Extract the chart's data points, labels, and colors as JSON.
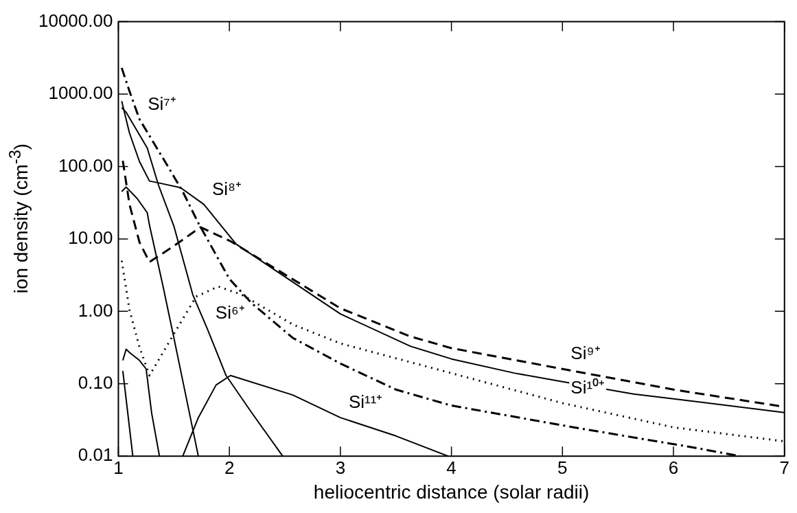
{
  "chart_data": {
    "type": "line",
    "xlabel": "heliocentric distance (solar radii)",
    "ylabel": "ion density (cm$^{-3}$)",
    "log": "y",
    "xlim": [
      1,
      7
    ],
    "xticks": [
      1,
      2,
      3,
      4,
      5,
      6,
      7
    ],
    "ylim": [
      0.01,
      10000
    ],
    "yticks": [
      {
        "value": 0.01,
        "label": "0.01"
      },
      {
        "value": 0.1,
        "label": "0.10"
      },
      {
        "value": 1,
        "label": "1.00"
      },
      {
        "value": 10,
        "label": "10.00"
      },
      {
        "value": 100,
        "label": "100.00"
      },
      {
        "value": 1000,
        "label": "1000.00"
      },
      {
        "value": 10000,
        "label": "10000.00"
      }
    ],
    "grid": false,
    "legend": false,
    "marker": "none",
    "series": [
      {
        "color": "#000000",
        "line_style": "dashdot",
        "x": [
          1.03,
          1.1,
          1.19,
          1.42,
          1.58,
          1.72,
          1.8,
          2.0,
          2.2,
          2.57,
          3.0,
          3.5,
          4.0,
          5.1,
          6.2,
          6.6
        ],
        "values": [
          2300,
          1100,
          450,
          117,
          45,
          16.6,
          10,
          2.8,
          1.3,
          0.43,
          0.19,
          0.083,
          0.05,
          0.025,
          0.013,
          0.01
        ]
      },
      {
        "color": "#000000",
        "line_style": "solid",
        "x": [
          1.03,
          1.1,
          1.19,
          1.28,
          1.35,
          1.56,
          1.77,
          2.06,
          3.0,
          3.63,
          4.0,
          4.57,
          5.0,
          5.64,
          6.0,
          7.0
        ],
        "values": [
          800,
          290,
          117,
          63,
          60,
          51,
          30,
          8.5,
          0.92,
          0.33,
          0.22,
          0.14,
          0.107,
          0.072,
          0.062,
          0.04
        ]
      },
      {
        "color": "#000000",
        "line_style": "dashed",
        "x": [
          1.04,
          1.1,
          1.19,
          1.28,
          1.5,
          1.74,
          2.01,
          3.0,
          3.63,
          4.0,
          5.0,
          6.0,
          7.0
        ],
        "values": [
          120,
          30,
          9,
          4.8,
          8,
          14.5,
          9.3,
          1.1,
          0.45,
          0.31,
          0.16,
          0.083,
          0.048
        ]
      },
      {
        "color": "#000000",
        "line_style": "dotted",
        "x": [
          1.03,
          1.1,
          1.19,
          1.28,
          1.49,
          1.7,
          1.9,
          2.11,
          2.57,
          3.0,
          4.0,
          5.0,
          6.0,
          7.0
        ],
        "values": [
          5,
          1.05,
          0.32,
          0.13,
          0.46,
          1.6,
          2.2,
          1.7,
          0.66,
          0.36,
          0.14,
          0.054,
          0.025,
          0.016
        ]
      },
      {
        "color": "#000000",
        "line_style": "solid",
        "x": [
          1.03,
          1.07,
          1.26,
          1.36,
          1.5,
          1.67,
          1.8,
          1.97,
          2.2,
          2.48
        ],
        "values": [
          650,
          560,
          180,
          56,
          15,
          1.7,
          0.58,
          0.13,
          0.04,
          0.01
        ]
      },
      {
        "color": "#000000",
        "line_style": "solid",
        "x": [
          1.03,
          1.07,
          1.17,
          1.26,
          1.28,
          1.4,
          1.5,
          1.6,
          1.72
        ],
        "values": [
          45,
          52,
          36,
          23,
          15.5,
          2.3,
          0.43,
          0.078,
          0.01
        ]
      },
      {
        "color": "#000000",
        "line_style": "solid",
        "x": [
          1.04,
          1.07,
          1.1,
          1.19,
          1.25,
          1.3,
          1.37
        ],
        "values": [
          0.21,
          0.3,
          0.27,
          0.21,
          0.16,
          0.039,
          0.01
        ]
      },
      {
        "color": "#000000",
        "line_style": "solid",
        "x": [
          1.04,
          1.13
        ],
        "values": [
          0.15,
          0.01
        ]
      },
      {
        "color": "#000000",
        "line_style": "solid",
        "x": [
          1.58,
          1.72,
          1.88,
          2.01,
          2.57,
          3.0,
          3.5,
          3.97
        ],
        "values": [
          0.01,
          0.034,
          0.096,
          0.13,
          0.07,
          0.034,
          0.019,
          0.01
        ]
      }
    ],
    "annotations": [
      {
        "text": "Si⁷⁺",
        "x": 1.19,
        "y": 450
      },
      {
        "text": "Si⁸⁺",
        "x": 1.77,
        "y": 30
      },
      {
        "text": "Si⁶⁺",
        "x": 1.8,
        "y": 0.58
      },
      {
        "text": "Si⁹⁺",
        "x": 5.0,
        "y": 0.16
      },
      {
        "text": "Si¹⁰⁺",
        "x": 5.0,
        "y": 0.054
      },
      {
        "text": "Si¹¹⁺",
        "x": 3.0,
        "y": 0.034
      }
    ]
  }
}
